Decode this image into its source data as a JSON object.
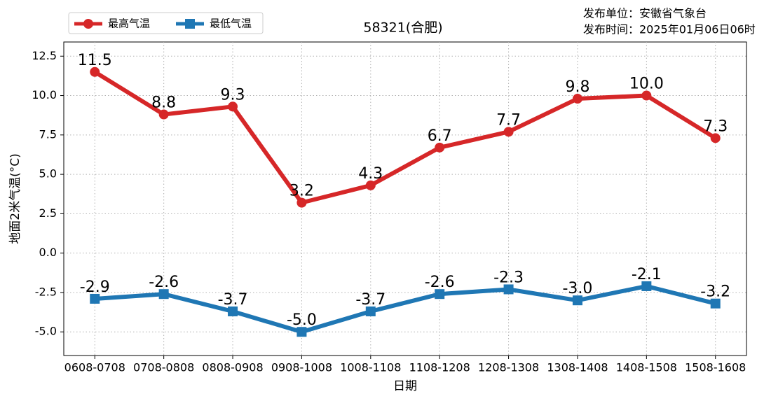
{
  "chart_data": {
    "type": "line",
    "title": "58321(合肥)",
    "publisher": [
      "发布单位：安徽省气象台",
      "发布时间：2025年01月06日06时"
    ],
    "x_label": "日期",
    "y_label": "地面2米气温(°C)",
    "categories": [
      "0608-0708",
      "0708-0808",
      "0808-0908",
      "0908-1008",
      "1008-1108",
      "1108-1208",
      "1208-1308",
      "1308-1408",
      "1408-1508",
      "1508-1608"
    ],
    "series": [
      {
        "name": "最高气温",
        "color": "#d62728",
        "marker": "circle",
        "values": [
          11.5,
          8.8,
          9.3,
          3.2,
          4.3,
          6.7,
          7.7,
          9.8,
          10,
          7.3
        ],
        "value_labels": [
          "11.5",
          "8.8",
          "9.3",
          "3.2",
          "4.3",
          "6.7",
          "7.7",
          "9.8",
          "10.0",
          "7.3"
        ]
      },
      {
        "name": "最低气温",
        "color": "#1f77b4",
        "marker": "square",
        "values": [
          -2.9,
          -2.6,
          -3.7,
          -5,
          -3.7,
          -2.6,
          -2.3,
          -3,
          -2.1,
          -3.2
        ],
        "value_labels": [
          "-2.9",
          "-2.6",
          "-3.7",
          "-5.0",
          "-3.7",
          "-2.6",
          "-2.3",
          "-3.0",
          "-2.1",
          "-3.2"
        ]
      }
    ],
    "ylim": [
      -6.5,
      13.4
    ],
    "yticks": [
      12.5,
      {
        "value": 10,
        "label": "10.0"
      },
      7.5,
      {
        "value": 5,
        "label": "5.0"
      },
      2.5,
      {
        "value": 0,
        "label": "0.0"
      },
      -2.5,
      {
        "value": -5,
        "label": "-5.0"
      }
    ],
    "grid": true,
    "legend": "upper left"
  }
}
